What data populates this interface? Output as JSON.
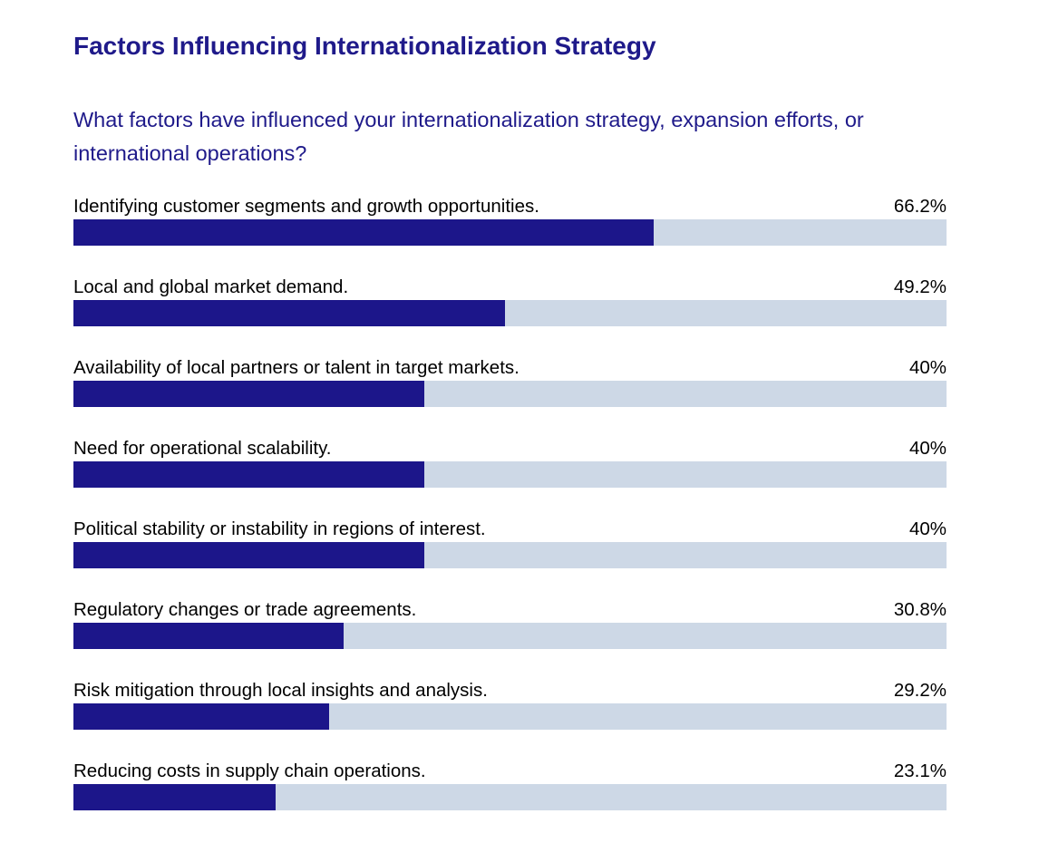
{
  "colors": {
    "title": "#1f1a8a",
    "bar_fill": "#1c168a",
    "bar_track": "#cdd8e6"
  },
  "chart_data": {
    "type": "bar",
    "orientation": "horizontal",
    "title": "Factors Influencing Internationalization Strategy",
    "subtitle": "What factors have influenced your internationalization strategy, expansion efforts, or international operations?",
    "value_unit": "%",
    "xlim": [
      0,
      100
    ],
    "grid": false,
    "categories": [
      "Identifying customer segments and growth opportunities.",
      "Local and global market demand.",
      "Availability of local partners or talent in target markets.",
      "Need for operational scalability.",
      "Political stability or instability in regions of interest.",
      "Regulatory changes or trade agreements.",
      "Risk mitigation through local insights and analysis.",
      "Reducing costs in supply chain operations."
    ],
    "values": [
      66.2,
      49.2,
      40,
      40,
      40,
      30.8,
      29.2,
      23.1
    ],
    "value_labels": [
      "66.2%",
      "49.2%",
      "40%",
      "40%",
      "40%",
      "30.8%",
      "29.2%",
      "23.1%"
    ]
  }
}
